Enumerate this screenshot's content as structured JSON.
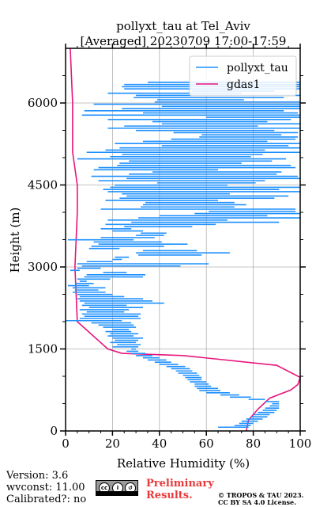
{
  "title_line1": "pollyxt_tau at Tel_Aviv",
  "title_line2": "[Averaged] 20230709 17:00-17:59",
  "footer": {
    "version": "Version: 3.6",
    "wvconst": "wvconst:  11.00",
    "calibrated": "Calibrated?: no",
    "preliminary_1": "Preliminary",
    "preliminary_2": "Results.",
    "copyright_1": "© TROPOS & TAU 2023.",
    "copyright_2": "CC BY SA 4.0 License.",
    "license_badge_icon": "cc-by-sa-icon"
  },
  "chart_data": {
    "type": "line",
    "xlabel": "Relative Humidity (%)",
    "ylabel": "Height (m)",
    "xlim": [
      0,
      100
    ],
    "ylim": [
      0,
      7000
    ],
    "xticks": [
      0,
      20,
      40,
      60,
      80,
      100
    ],
    "yticks": [
      0,
      1500,
      3000,
      4500,
      6000
    ],
    "grid": true,
    "legend_position": "top-right",
    "series": [
      {
        "name": "pollyxt_tau",
        "color": "#1e90ff",
        "style": "step-profile",
        "segments": [
          [
            69,
            65,
            78
          ],
          [
            98,
            72,
            79
          ],
          [
            138,
            74,
            80
          ],
          [
            178,
            75,
            82
          ],
          [
            218,
            77,
            84
          ],
          [
            258,
            79,
            86
          ],
          [
            298,
            80,
            87
          ],
          [
            338,
            82,
            89
          ],
          [
            378,
            84,
            90
          ],
          [
            418,
            85,
            91
          ],
          [
            458,
            87,
            91
          ],
          [
            498,
            88,
            91
          ],
          [
            538,
            85,
            91
          ],
          [
            578,
            78,
            85
          ],
          [
            618,
            70,
            79
          ],
          [
            658,
            66,
            74
          ],
          [
            698,
            60,
            70
          ],
          [
            738,
            57,
            66
          ],
          [
            778,
            56,
            65
          ],
          [
            818,
            55,
            62
          ],
          [
            858,
            55,
            61
          ],
          [
            898,
            53,
            60
          ],
          [
            938,
            52,
            58
          ],
          [
            978,
            51,
            58
          ],
          [
            1018,
            50,
            57
          ],
          [
            1058,
            48,
            56
          ],
          [
            1098,
            47,
            54
          ],
          [
            1138,
            45,
            53
          ],
          [
            1178,
            43,
            51
          ],
          [
            1218,
            40,
            48
          ],
          [
            1258,
            38,
            45
          ],
          [
            1298,
            35,
            43
          ],
          [
            1338,
            33,
            40
          ],
          [
            1378,
            30,
            37
          ],
          [
            1418,
            28,
            34
          ],
          [
            1458,
            26,
            31
          ],
          [
            1498,
            28,
            30
          ],
          [
            1538,
            20,
            31
          ],
          [
            1578,
            22,
            32
          ],
          [
            1618,
            19,
            30
          ],
          [
            1658,
            21,
            31
          ],
          [
            1698,
            20,
            33
          ],
          [
            1738,
            18,
            29
          ],
          [
            1778,
            19,
            31
          ],
          [
            1818,
            17,
            28
          ],
          [
            1858,
            20,
            27
          ],
          [
            1898,
            16,
            30
          ],
          [
            1938,
            14,
            29
          ],
          [
            1978,
            11,
            28
          ],
          [
            2018,
            0,
            24
          ],
          [
            2058,
            6,
            32
          ],
          [
            2098,
            8,
            31
          ],
          [
            2138,
            7,
            32
          ],
          [
            2178,
            9,
            25
          ],
          [
            2218,
            6,
            27
          ],
          [
            2258,
            10,
            33
          ],
          [
            2298,
            7,
            26
          ],
          [
            2338,
            8,
            42
          ],
          [
            2378,
            6,
            37
          ],
          [
            2418,
            5,
            33
          ],
          [
            2458,
            6,
            25
          ],
          [
            2498,
            5,
            20
          ],
          [
            2538,
            3,
            17
          ],
          [
            2578,
            4,
            14
          ],
          [
            2618,
            3,
            17
          ],
          [
            2658,
            1,
            10
          ],
          [
            2698,
            4,
            12
          ],
          [
            2738,
            6,
            9
          ],
          [
            2778,
            5,
            19
          ],
          [
            2818,
            8,
            33
          ],
          [
            2858,
            9,
            34
          ],
          [
            2898,
            16,
            26
          ],
          [
            2938,
            2,
            6
          ],
          [
            2978,
            5,
            15
          ],
          [
            3018,
            7,
            49
          ],
          [
            3058,
            5,
            61
          ],
          [
            3098,
            9,
            20
          ],
          [
            3138,
            20,
            24
          ],
          [
            3178,
            21,
            27
          ],
          [
            3218,
            31,
            58
          ],
          [
            3258,
            30,
            70
          ],
          [
            3298,
            33,
            56
          ],
          [
            3338,
            10,
            23
          ],
          [
            3378,
            11,
            42
          ],
          [
            3418,
            14,
            52
          ],
          [
            3458,
            12,
            41
          ],
          [
            3498,
            1,
            29
          ],
          [
            3538,
            15,
            38
          ],
          [
            3578,
            30,
            42
          ],
          [
            3618,
            32,
            43
          ],
          [
            3658,
            20,
            33
          ],
          [
            3698,
            15,
            28
          ],
          [
            3738,
            25,
            54
          ],
          [
            3778,
            17,
            64
          ],
          [
            3818,
            28,
            91
          ],
          [
            3858,
            18,
            69
          ],
          [
            3898,
            31,
            100
          ],
          [
            3938,
            40,
            86
          ],
          [
            3978,
            55,
            100
          ],
          [
            4018,
            61,
            98
          ],
          [
            4058,
            15,
            98
          ],
          [
            4098,
            32,
            72
          ],
          [
            4138,
            33,
            77
          ],
          [
            4178,
            34,
            72
          ],
          [
            4218,
            17,
            65
          ],
          [
            4258,
            23,
            89
          ],
          [
            4298,
            26,
            95
          ],
          [
            4338,
            24,
            70
          ],
          [
            4378,
            18,
            100
          ],
          [
            4418,
            16,
            91
          ],
          [
            4458,
            19,
            100
          ],
          [
            4498,
            21,
            69
          ],
          [
            4538,
            39,
            81
          ],
          [
            4578,
            14,
            85
          ],
          [
            4618,
            26,
            100
          ],
          [
            4658,
            11,
            99
          ],
          [
            4698,
            27,
            90
          ],
          [
            4738,
            37,
            92
          ],
          [
            4778,
            12,
            65
          ],
          [
            4818,
            14,
            98
          ],
          [
            4858,
            22,
            96
          ],
          [
            4898,
            23,
            75
          ],
          [
            4938,
            27,
            88
          ],
          [
            4978,
            5,
            94
          ],
          [
            5018,
            19,
            79
          ],
          [
            5058,
            24,
            84
          ],
          [
            5098,
            9,
            100
          ],
          [
            5138,
            17,
            85
          ],
          [
            5178,
            23,
            100
          ],
          [
            5218,
            41,
            95
          ],
          [
            5258,
            21,
            100
          ],
          [
            5298,
            33,
            86
          ],
          [
            5338,
            45,
            98
          ],
          [
            5378,
            57,
            99
          ],
          [
            5418,
            58,
            92
          ],
          [
            5458,
            46,
            99
          ],
          [
            5498,
            30,
            89
          ],
          [
            5538,
            18,
            100
          ],
          [
            5578,
            25,
            82
          ],
          [
            5618,
            41,
            100
          ],
          [
            5658,
            37,
            86
          ],
          [
            5698,
            18,
            96
          ],
          [
            5738,
            60,
            100
          ],
          [
            5778,
            7,
            100
          ],
          [
            5818,
            33,
            99
          ],
          [
            5858,
            8,
            93
          ],
          [
            5898,
            24,
            100
          ],
          [
            5938,
            41,
            100
          ],
          [
            5978,
            12,
            100
          ],
          [
            6018,
            38,
            100
          ],
          [
            6058,
            39,
            76
          ],
          [
            6098,
            29,
            93
          ],
          [
            6138,
            30,
            100
          ],
          [
            6178,
            18,
            75
          ],
          [
            6218,
            54,
            89
          ],
          [
            6258,
            25,
            100
          ],
          [
            6298,
            24,
            100
          ],
          [
            6338,
            25,
            100
          ],
          [
            6378,
            35,
            100
          ]
        ]
      },
      {
        "name": "gdas1",
        "color": "#e8157d",
        "x": [
          77,
          78,
          82,
          87,
          96,
          99,
          100,
          90,
          50,
          24,
          18,
          5,
          4,
          5,
          5,
          5,
          3,
          3,
          2
        ],
        "y": [
          0,
          200,
          400,
          600,
          750,
          850,
          980,
          1200,
          1380,
          1420,
          1500,
          2000,
          3000,
          4000,
          4200,
          4500,
          5100,
          6000,
          7000
        ]
      }
    ]
  }
}
